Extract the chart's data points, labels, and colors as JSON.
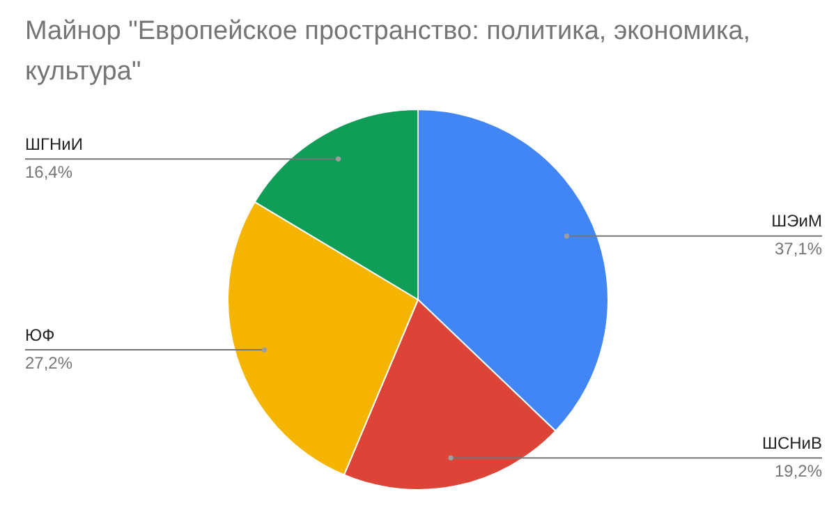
{
  "chart_data": {
    "type": "pie",
    "title": "Майнор \"Европейское пространство: политика, экономика, культура\"",
    "categories": [
      "ШЭиМ",
      "ШСНиВ",
      "ЮФ",
      "ШГНиИ"
    ],
    "values": [
      37.1,
      19.2,
      27.2,
      16.4
    ],
    "colors": [
      "#4285f4",
      "#db4437",
      "#f4b400",
      "#0f9d58"
    ],
    "value_labels": [
      "37,1%",
      "19,2%",
      "27,2%",
      "16,4%"
    ],
    "legend": false
  }
}
